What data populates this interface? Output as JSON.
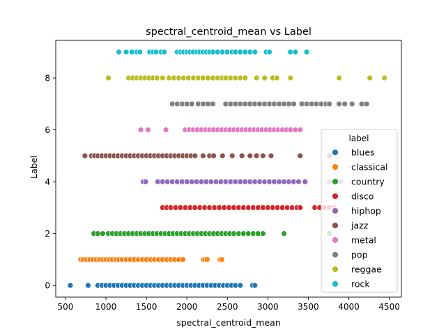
{
  "chart_data": {
    "type": "scatter",
    "title": "spectral_centroid_mean vs Label",
    "xlabel": "spectral_centroid_mean",
    "ylabel": "Label",
    "xlim": [
      380,
      4650
    ],
    "ylim": [
      -0.45,
      9.45
    ],
    "xticks": [
      500,
      1000,
      1500,
      2000,
      2500,
      3000,
      3500,
      4000,
      4500
    ],
    "yticks": [
      0,
      2,
      4,
      6,
      8
    ],
    "grid": false,
    "legend": {
      "title": "label",
      "placement": "center-right"
    },
    "series": [
      {
        "name": "blues",
        "color": "#1f77b4",
        "y": 0,
        "x": [
          560,
          780,
          900,
          950,
          1000,
          1050,
          1100,
          1150,
          1200,
          1250,
          1300,
          1350,
          1400,
          1450,
          1500,
          1550,
          1600,
          1650,
          1700,
          1750,
          1800,
          1850,
          1900,
          1950,
          2000,
          2050,
          2100,
          2150,
          2200,
          2250,
          2300,
          2350,
          2400,
          2450,
          2500,
          2550,
          2600,
          2660,
          2810,
          2840
        ]
      },
      {
        "name": "classical",
        "color": "#ff7f0e",
        "y": 1,
        "x": [
          690,
          720,
          760,
          800,
          840,
          880,
          920,
          960,
          1000,
          1040,
          1080,
          1120,
          1160,
          1200,
          1250,
          1300,
          1350,
          1400,
          1450,
          1500,
          1550,
          1600,
          1650,
          1700,
          1750,
          1800,
          1850,
          1900,
          1950,
          2200,
          2220,
          2250,
          2410,
          2430
        ]
      },
      {
        "name": "country",
        "color": "#2ca02c",
        "y": 2,
        "x": [
          850,
          900,
          960,
          1030,
          1080,
          1130,
          1180,
          1230,
          1280,
          1330,
          1380,
          1430,
          1480,
          1530,
          1580,
          1630,
          1680,
          1730,
          1780,
          1830,
          1880,
          1930,
          1980,
          2030,
          2080,
          2130,
          2180,
          2230,
          2280,
          2330,
          2380,
          2430,
          2480,
          2530,
          2580,
          2640,
          2700,
          2760,
          2820,
          2880,
          2940,
          3200,
          3760
        ]
      },
      {
        "name": "disco",
        "color": "#d62728",
        "y": 3,
        "x": [
          1700,
          1750,
          1800,
          1860,
          1920,
          1980,
          2040,
          2100,
          2160,
          2220,
          2280,
          2340,
          2400,
          2460,
          2520,
          2580,
          2640,
          2700,
          2760,
          2820,
          2880,
          2940,
          3000,
          3060,
          3120,
          3180,
          3240,
          3300,
          3360,
          3400,
          3580,
          3640,
          3700,
          3760,
          3820
        ]
      },
      {
        "name": "hiphop",
        "color": "#9467bd",
        "y": 4,
        "x": [
          1460,
          1490,
          1640,
          1700,
          1760,
          1820,
          1880,
          1940,
          2000,
          2060,
          2120,
          2180,
          2240,
          2300,
          2360,
          2420,
          2480,
          2540,
          2600,
          2660,
          2720,
          2780,
          2840,
          2900,
          2960,
          3020,
          3080,
          3140,
          3200,
          3260,
          3320,
          3380,
          3460,
          3760,
          3900
        ]
      },
      {
        "name": "jazz",
        "color": "#8c564b",
        "y": 5,
        "x": [
          740,
          820,
          860,
          900,
          950,
          1000,
          1050,
          1100,
          1150,
          1200,
          1250,
          1300,
          1350,
          1400,
          1450,
          1500,
          1550,
          1600,
          1650,
          1700,
          1750,
          1800,
          1850,
          1900,
          1950,
          2000,
          2050,
          2100,
          2200,
          2280,
          2330,
          2440,
          2560,
          2680,
          2780,
          2860,
          2940,
          3040,
          3400,
          3760
        ]
      },
      {
        "name": "metal",
        "color": "#e377c2",
        "y": 6,
        "x": [
          1430,
          1520,
          1740,
          1980,
          2030,
          2080,
          2130,
          2180,
          2230,
          2280,
          2330,
          2380,
          2430,
          2480,
          2530,
          2580,
          2630,
          2680,
          2730,
          2780,
          2830,
          2880,
          2930,
          2980,
          3030,
          3080,
          3130,
          3180,
          3230,
          3280,
          3340,
          3400
        ]
      },
      {
        "name": "pop",
        "color": "#7f7f7f",
        "y": 7,
        "x": [
          1820,
          1880,
          1940,
          2000,
          2060,
          2140,
          2200,
          2260,
          2320,
          2480,
          2540,
          2600,
          2660,
          2720,
          2780,
          2840,
          2900,
          2960,
          3020,
          3080,
          3140,
          3200,
          3260,
          3320,
          3420,
          3480,
          3540,
          3600,
          3660,
          3720,
          3760,
          3880,
          3950,
          4040,
          4160,
          4220
        ]
      },
      {
        "name": "reggae",
        "color": "#bcbd22",
        "y": 8,
        "x": [
          1030,
          1280,
          1330,
          1380,
          1430,
          1480,
          1530,
          1580,
          1630,
          1700,
          1780,
          1840,
          1900,
          1960,
          2020,
          2080,
          2140,
          2200,
          2260,
          2320,
          2380,
          2440,
          2480,
          2540,
          2600,
          2660,
          2720,
          2860,
          2960,
          3060,
          3110,
          3280,
          3880,
          4260,
          4440
        ]
      },
      {
        "name": "rock",
        "color": "#17becf",
        "y": 9,
        "x": [
          1160,
          1250,
          1320,
          1380,
          1420,
          1540,
          1580,
          1620,
          1680,
          1720,
          1880,
          1920,
          1960,
          2000,
          2040,
          2080,
          2120,
          2160,
          2200,
          2240,
          2280,
          2320,
          2380,
          2440,
          2500,
          2560,
          2600,
          2660,
          2720,
          2780,
          2840,
          2980,
          3020,
          3280,
          3340,
          3480
        ]
      }
    ]
  }
}
